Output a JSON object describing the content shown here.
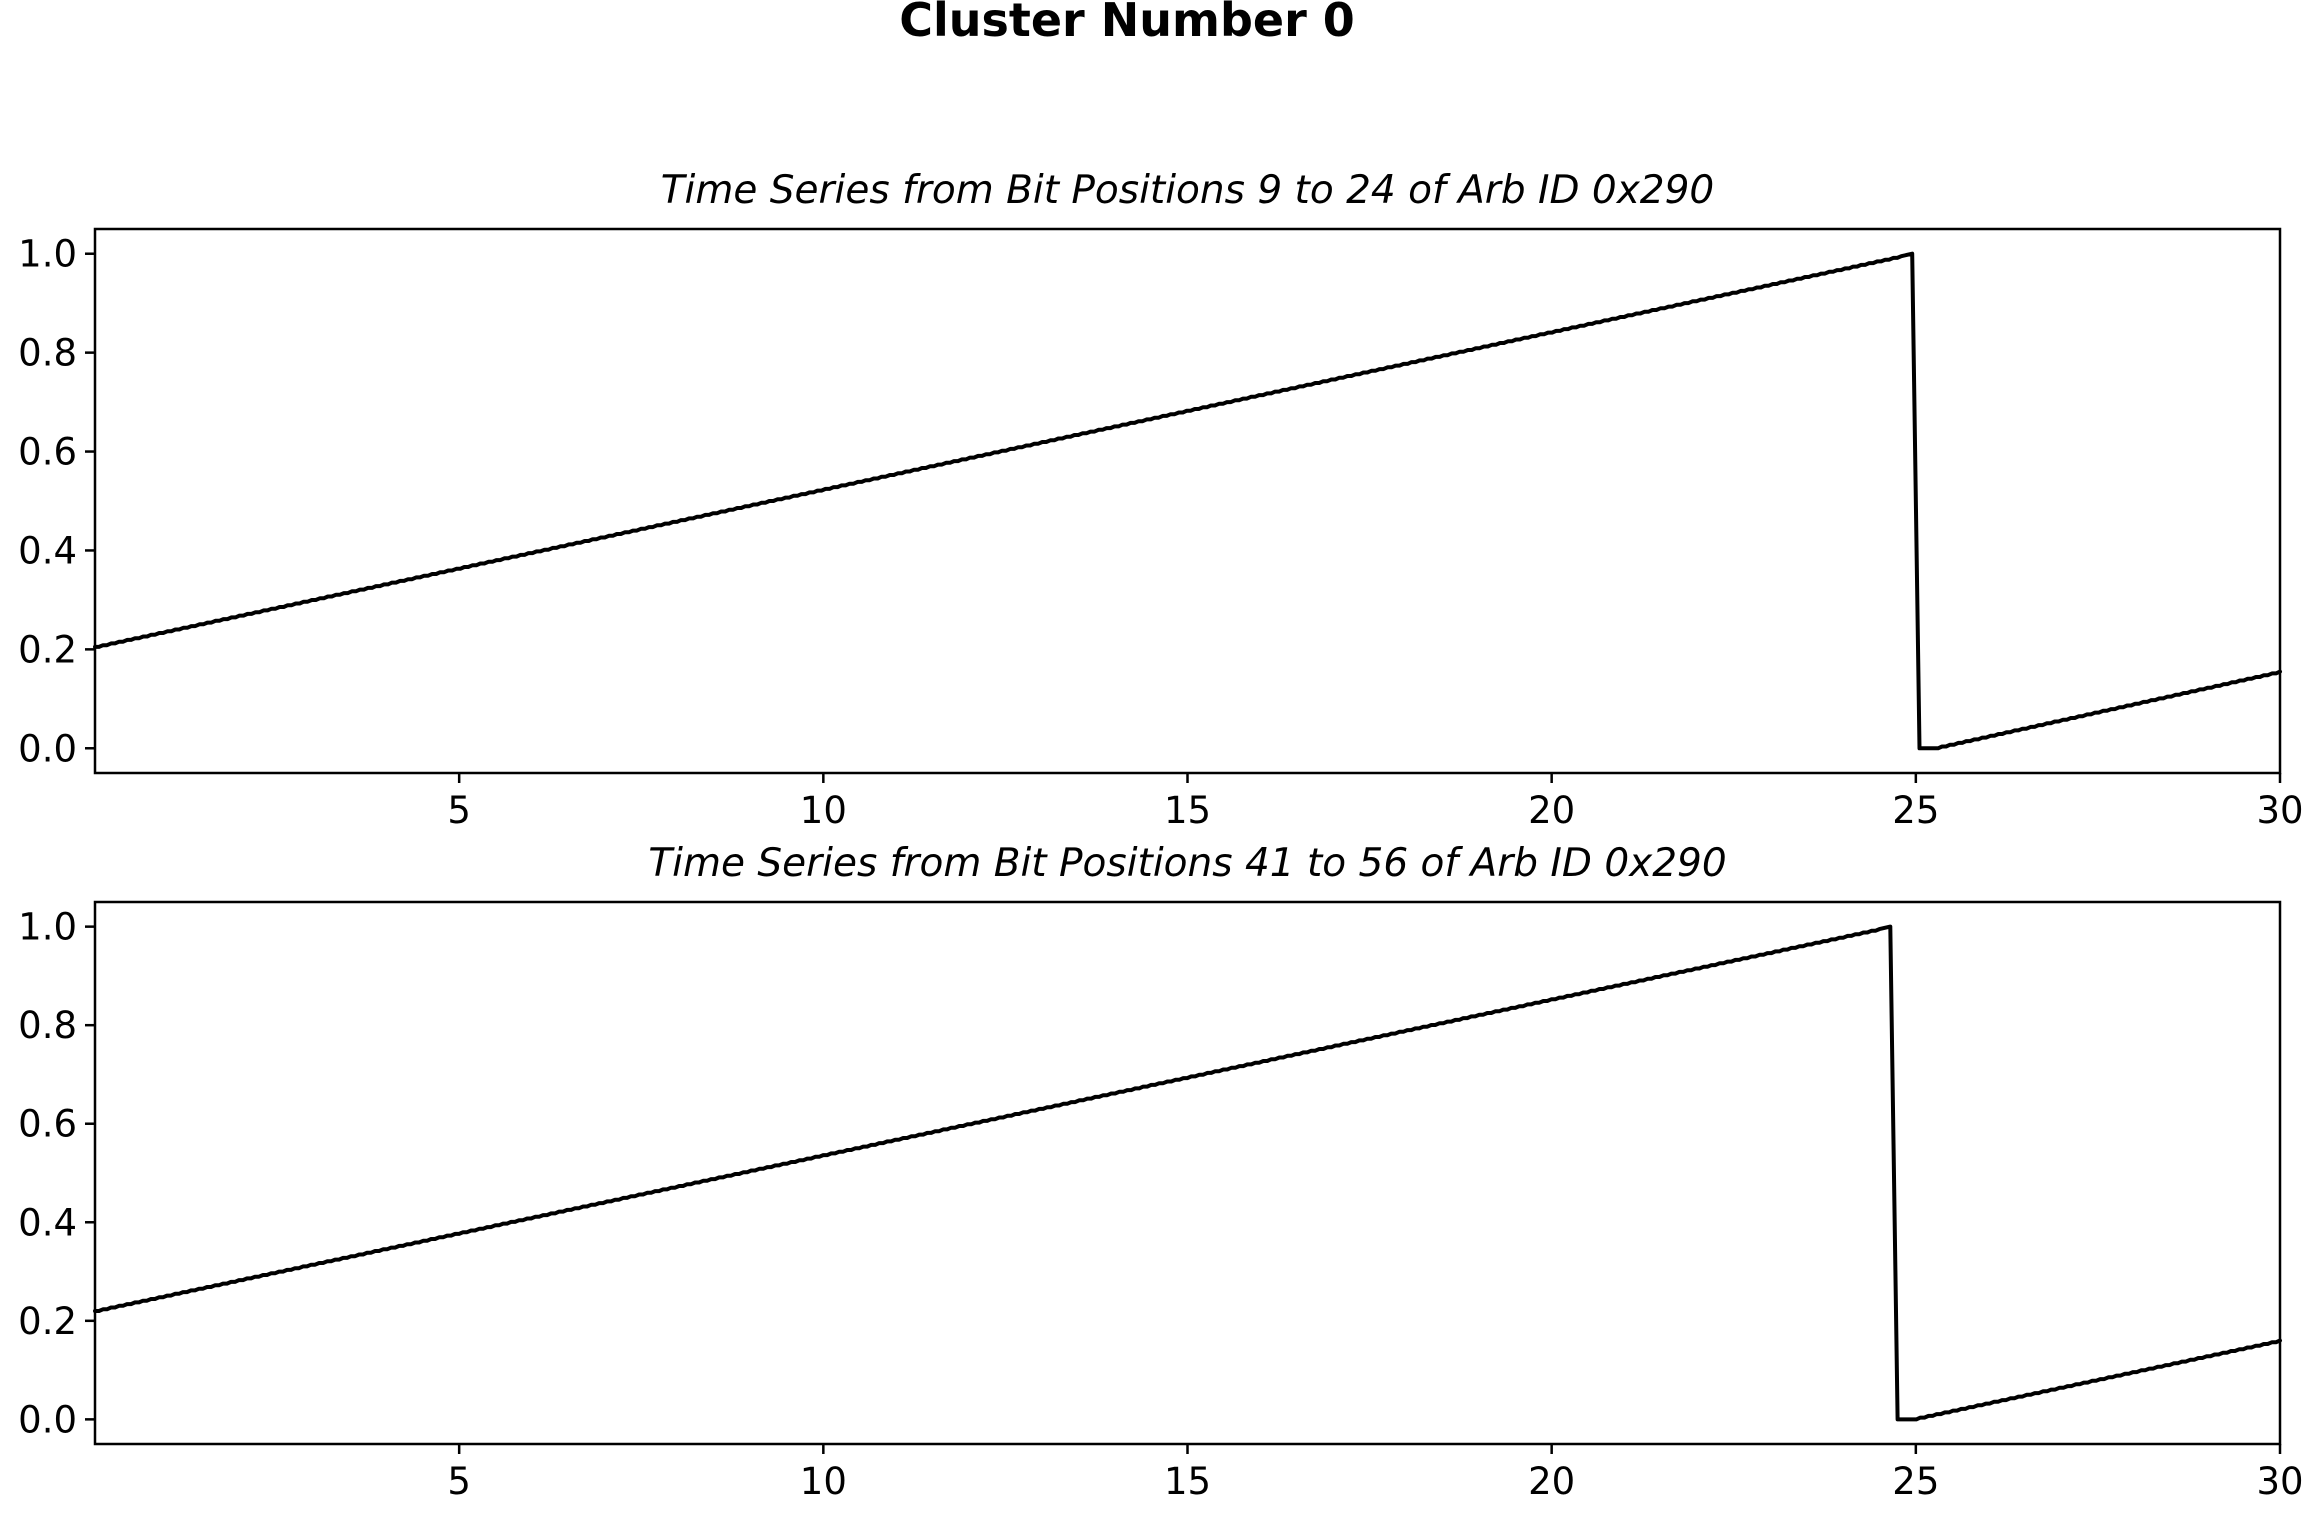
{
  "figure": {
    "title": "Cluster Number 0"
  },
  "colors": {
    "line": "#000000",
    "frame": "#000000",
    "background": "#ffffff"
  },
  "chart_data": [
    {
      "type": "line",
      "title": "Time Series from Bit Positions 9 to 24 of Arb ID 0x290",
      "xlabel": "",
      "ylabel": "",
      "xlim": [
        0,
        30
      ],
      "ylim": [
        -0.05,
        1.05
      ],
      "grid": false,
      "legend": "none",
      "xticks": [
        5,
        10,
        15,
        20,
        25,
        30
      ],
      "xtick_labels": [
        "5",
        "10",
        "15",
        "20",
        "25",
        "30"
      ],
      "yticks": [
        0.0,
        0.2,
        0.4,
        0.6,
        0.8,
        1.0
      ],
      "ytick_labels": [
        "0.0",
        "0.2",
        "0.4",
        "0.6",
        "0.8",
        "1.0"
      ],
      "series": [
        {
          "color": "#000000",
          "x": [
            0,
            24.8,
            24.95,
            25.05,
            25.25,
            30
          ],
          "y": [
            0.205,
            0.995,
            1.0,
            0.0,
            0.0,
            0.155
          ]
        }
      ]
    },
    {
      "type": "line",
      "title": "Time Series from Bit Positions 41 to 56 of Arb ID 0x290",
      "xlabel": "",
      "ylabel": "",
      "xlim": [
        0,
        30
      ],
      "ylim": [
        -0.05,
        1.05
      ],
      "grid": false,
      "legend": "none",
      "xticks": [
        5,
        10,
        15,
        20,
        25,
        30
      ],
      "xtick_labels": [
        "5",
        "10",
        "15",
        "20",
        "25",
        "30"
      ],
      "yticks": [
        0.0,
        0.2,
        0.4,
        0.6,
        0.8,
        1.0
      ],
      "ytick_labels": [
        "0.0",
        "0.2",
        "0.4",
        "0.6",
        "0.8",
        "1.0"
      ],
      "series": [
        {
          "color": "#000000",
          "x": [
            0,
            24.5,
            24.65,
            24.75,
            24.95,
            30
          ],
          "y": [
            0.22,
            0.995,
            1.0,
            0.0,
            0.0,
            0.16
          ]
        }
      ]
    }
  ]
}
